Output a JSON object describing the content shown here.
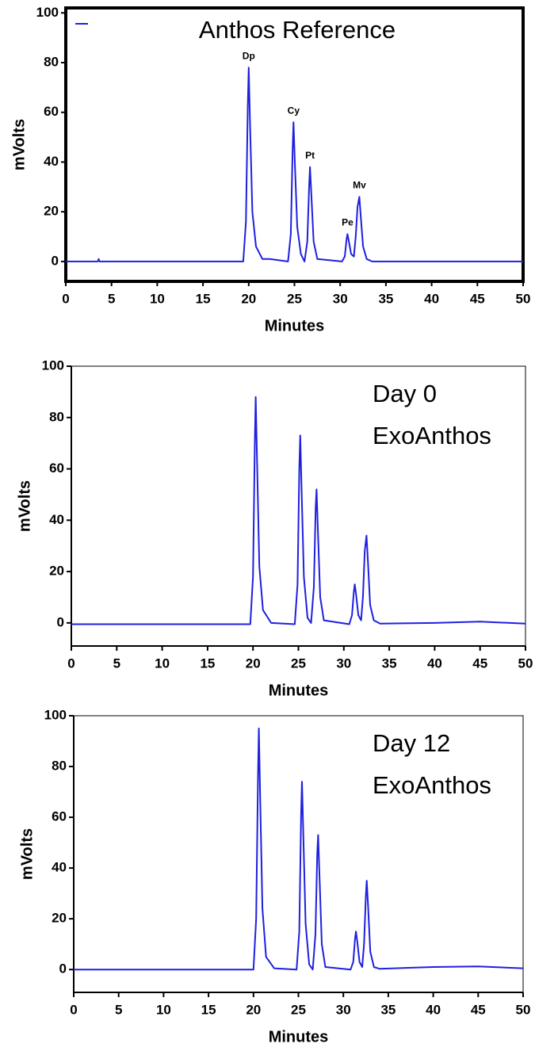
{
  "chart_data": [
    {
      "type": "line",
      "title": "Anthos Reference",
      "x_label": "Minutes",
      "y_label": "mVolts",
      "frame": true,
      "x": [
        0,
        3.5,
        3.6,
        3.7,
        10,
        19.4,
        19.7,
        19.9,
        20,
        20.15,
        20.4,
        20.8,
        21.5,
        22.3,
        24.3,
        24.6,
        24.8,
        24.9,
        25.05,
        25.3,
        25.7,
        26.1,
        26.4,
        26.6,
        26.7,
        26.85,
        27.1,
        27.5,
        30.2,
        30.5,
        30.7,
        30.8,
        30.95,
        31.2,
        31.5,
        31.7,
        31.9,
        32.1,
        32.25,
        32.5,
        32.9,
        33.5,
        50
      ],
      "series": [
        {
          "color": "#1f1fe0",
          "values": [
            0,
            0,
            1,
            0,
            0,
            0,
            16,
            62,
            78,
            55,
            20,
            6,
            1,
            1,
            0,
            11,
            45,
            56,
            39,
            14,
            3,
            0,
            8,
            30,
            38,
            27,
            8,
            1,
            0,
            2,
            9,
            11,
            8,
            3,
            2,
            10,
            22,
            26,
            18,
            6,
            1,
            0,
            0
          ]
        }
      ],
      "annotations": [
        {
          "text": "Dp",
          "x": 20,
          "y": 78
        },
        {
          "text": "Cy",
          "x": 24.9,
          "y": 56
        },
        {
          "text": "Pt",
          "x": 26.7,
          "y": 38
        },
        {
          "text": "Pe",
          "x": 30.8,
          "y": 11
        },
        {
          "text": "Mv",
          "x": 32.1,
          "y": 26
        }
      ],
      "xlim": [
        0,
        50
      ],
      "ylim": [
        -8,
        102
      ],
      "xticks": [
        0,
        5,
        10,
        15,
        20,
        25,
        30,
        35,
        40,
        45,
        50
      ],
      "yticks": [
        0,
        20,
        40,
        60,
        80,
        100
      ]
    },
    {
      "type": "line",
      "title": [
        "Day 0",
        "ExoAnthos"
      ],
      "x_label": "Minutes",
      "y_label": "mVolts",
      "frame": false,
      "x": [
        0,
        10,
        19.7,
        20,
        20.2,
        20.3,
        20.45,
        20.7,
        21.1,
        22,
        24.6,
        24.9,
        25.1,
        25.2,
        25.35,
        25.6,
        26,
        26.4,
        26.7,
        26.9,
        27,
        27.15,
        27.4,
        27.8,
        30.6,
        30.9,
        31.1,
        31.2,
        31.35,
        31.6,
        31.9,
        32.1,
        32.3,
        32.5,
        32.65,
        32.9,
        33.3,
        34,
        40,
        45,
        50
      ],
      "series": [
        {
          "color": "#1f1fe0",
          "values": [
            -0.5,
            -0.5,
            -0.5,
            18,
            70,
            88,
            62,
            22,
            5,
            0,
            -0.5,
            15,
            60,
            73,
            52,
            18,
            2,
            0,
            14,
            45,
            52,
            36,
            10,
            1,
            -0.5,
            3,
            12,
            15,
            11,
            3,
            1,
            10,
            28,
            34,
            24,
            7,
            1,
            -0.3,
            0,
            0.5,
            -0.3
          ]
        }
      ],
      "xlim": [
        0,
        50
      ],
      "ylim": [
        -9,
        100
      ],
      "xticks": [
        0,
        5,
        10,
        15,
        20,
        25,
        30,
        35,
        40,
        45,
        50
      ],
      "yticks": [
        0,
        20,
        40,
        60,
        80,
        100
      ]
    },
    {
      "type": "line",
      "title": [
        "Day 12",
        "ExoAnthos"
      ],
      "x_label": "Minutes",
      "y_label": "mVolts",
      "frame": false,
      "x": [
        0,
        10,
        20,
        20.3,
        20.5,
        20.6,
        20.75,
        21,
        21.4,
        22.3,
        24.8,
        25.1,
        25.3,
        25.4,
        25.55,
        25.8,
        26.2,
        26.6,
        26.9,
        27.1,
        27.2,
        27.35,
        27.6,
        28,
        30.8,
        31.1,
        31.3,
        31.4,
        31.55,
        31.8,
        32.1,
        32.3,
        32.5,
        32.6,
        32.75,
        33,
        33.4,
        34,
        40,
        45,
        50
      ],
      "series": [
        {
          "color": "#1f1fe0",
          "values": [
            0,
            0,
            0,
            20,
            76,
            95,
            67,
            24,
            5,
            0.5,
            0,
            15,
            61,
            74,
            53,
            18,
            2,
            0,
            14,
            46,
            53,
            37,
            10,
            1,
            0,
            3,
            12,
            15,
            11,
            3,
            1,
            10,
            29,
            35,
            25,
            7,
            1,
            0.3,
            1,
            1.2,
            0.5
          ]
        }
      ],
      "xlim": [
        0,
        50
      ],
      "ylim": [
        -9,
        100
      ],
      "xticks": [
        0,
        5,
        10,
        15,
        20,
        25,
        30,
        35,
        40,
        45,
        50
      ],
      "yticks": [
        0,
        20,
        40,
        60,
        80,
        100
      ]
    }
  ]
}
